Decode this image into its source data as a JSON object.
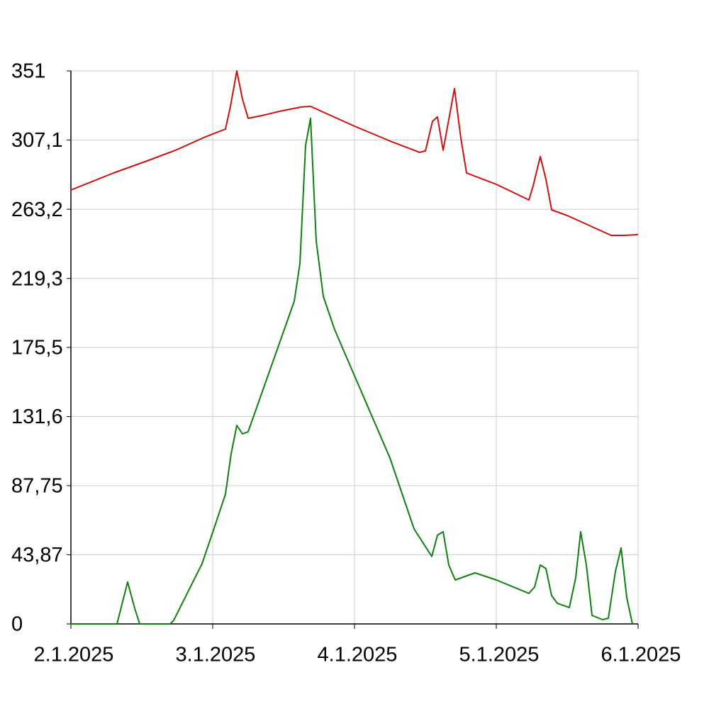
{
  "chart_data": {
    "type": "line",
    "xlim": [
      2,
      6
    ],
    "xticks": [
      {
        "value": 2,
        "label": "2.1.2025"
      },
      {
        "value": 3,
        "label": "3.1.2025"
      },
      {
        "value": 4,
        "label": "4.1.2025"
      },
      {
        "value": 5,
        "label": "5.1.2025"
      },
      {
        "value": 6,
        "label": "6.1.2025"
      }
    ],
    "ylim": [
      0,
      351
    ],
    "yticks": [
      0,
      {
        "value": 43.87,
        "label": "43,87"
      },
      {
        "value": 87.75,
        "label": "87,75"
      },
      {
        "value": 131.6,
        "label": "131,6"
      },
      {
        "value": 175.5,
        "label": "175,5"
      },
      {
        "value": 219.3,
        "label": "219,3"
      },
      {
        "value": 263.2,
        "label": "263,2"
      },
      {
        "value": 307.1,
        "label": "307,1"
      },
      351
    ],
    "grid": true,
    "series": [
      {
        "color": "#d01010",
        "x": [
          2.0,
          2.3,
          2.55,
          2.75,
          2.95,
          3.09,
          3.125,
          3.17,
          3.21,
          3.25,
          3.35,
          3.475,
          3.625,
          3.69,
          3.8,
          4.0,
          4.25,
          4.46,
          4.5,
          4.55,
          4.585,
          4.625,
          4.705,
          4.75,
          4.79,
          5.0,
          5.23,
          5.26,
          5.31,
          5.35,
          5.39,
          5.5,
          5.81,
          5.9,
          6.0
        ],
        "values": [
          275.4,
          286.2,
          294.3,
          301.1,
          309.2,
          314.1,
          328.5,
          351,
          333,
          320.9,
          322.7,
          325.4,
          328.1,
          328.5,
          324,
          315.9,
          306.5,
          299.3,
          300.2,
          319,
          321.8,
          300.6,
          339.8,
          308.3,
          286.2,
          279,
          269.1,
          278.1,
          296.6,
          282.2,
          262.8,
          259.2,
          246.6,
          246.6,
          247.1
        ]
      },
      {
        "color": "#108010",
        "x": [
          2.0,
          2.325,
          2.4,
          2.45,
          2.485,
          2.7,
          2.725,
          2.8,
          2.925,
          3.01,
          3.09,
          3.13,
          3.17,
          3.21,
          3.25,
          3.575,
          3.615,
          3.655,
          3.69,
          3.73,
          3.78,
          3.86,
          4.0,
          4.25,
          4.42,
          4.545,
          4.585,
          4.625,
          4.665,
          4.71,
          4.85,
          5.0,
          5.23,
          5.27,
          5.31,
          5.35,
          5.39,
          5.43,
          5.515,
          5.56,
          5.595,
          5.635,
          5.675,
          5.75,
          5.79,
          5.84,
          5.88,
          5.92,
          5.96
        ],
        "values": [
          0,
          0,
          26.6,
          9.9,
          0,
          0,
          2.3,
          15.8,
          38.3,
          60.8,
          82.4,
          108,
          126,
          120.6,
          122,
          204.8,
          228.6,
          303.8,
          320.9,
          243,
          207.9,
          186.8,
          157.5,
          105.3,
          60.3,
          42.8,
          56.3,
          58.5,
          37.4,
          27.9,
          32.4,
          27.9,
          19.4,
          23.4,
          37.4,
          35.1,
          18,
          13.1,
          10.4,
          29.3,
          58.5,
          37.4,
          5.4,
          2.7,
          3.6,
          33.3,
          48.2,
          16.7,
          0
        ]
      }
    ]
  }
}
